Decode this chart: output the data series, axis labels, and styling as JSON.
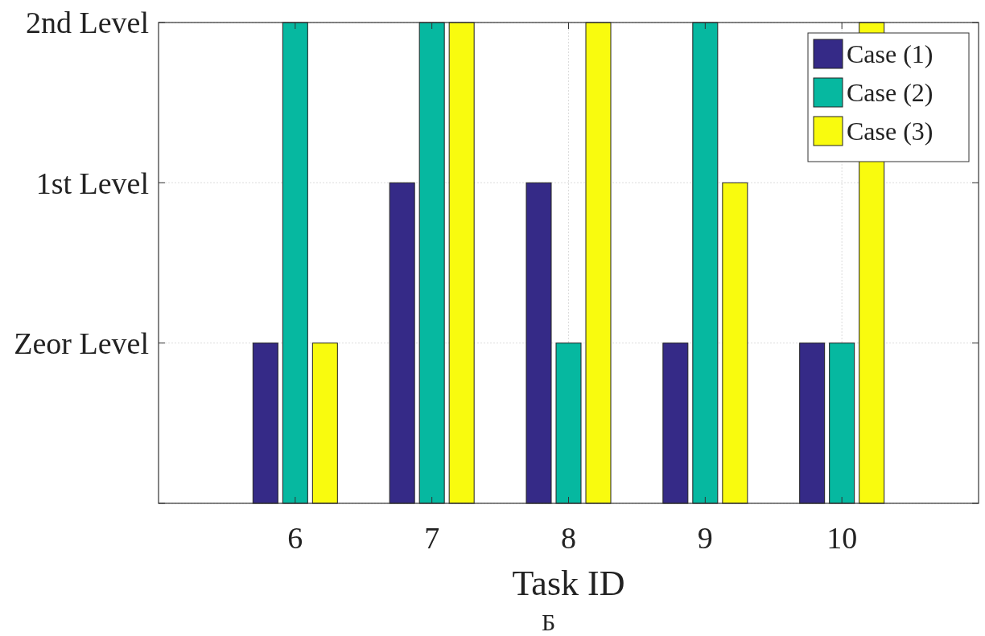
{
  "chart_data": {
    "type": "bar",
    "xlabel": "Task ID",
    "categories": [
      "6",
      "7",
      "8",
      "9",
      "10"
    ],
    "series": [
      {
        "name": "Case (1)",
        "color": "#352a87",
        "values": [
          1,
          2,
          2,
          1,
          1
        ],
        "base": [
          -1,
          -1,
          -1,
          -1,
          -1
        ]
      },
      {
        "name": "Case (2)",
        "color": "#06b8a0",
        "values": [
          3,
          3,
          1,
          3,
          1
        ],
        "base": [
          -1,
          -1,
          -1,
          -1,
          -1
        ]
      },
      {
        "name": "Case (3)",
        "color": "#f9fb0e",
        "values": [
          1,
          3,
          3,
          2,
          3
        ],
        "base": [
          -1,
          -1,
          -1,
          -1,
          -1
        ]
      }
    ],
    "ylim": [
      -1,
      2
    ],
    "yticks": [
      {
        "value": -1,
        "label": null
      },
      {
        "value": 0,
        "label": "Zeor Level"
      },
      {
        "value": 1,
        "label": "1st Level"
      },
      {
        "value": 2,
        "label": "2nd Level"
      }
    ],
    "grid": true,
    "legend": "top right",
    "annotations": [
      "Б"
    ]
  }
}
